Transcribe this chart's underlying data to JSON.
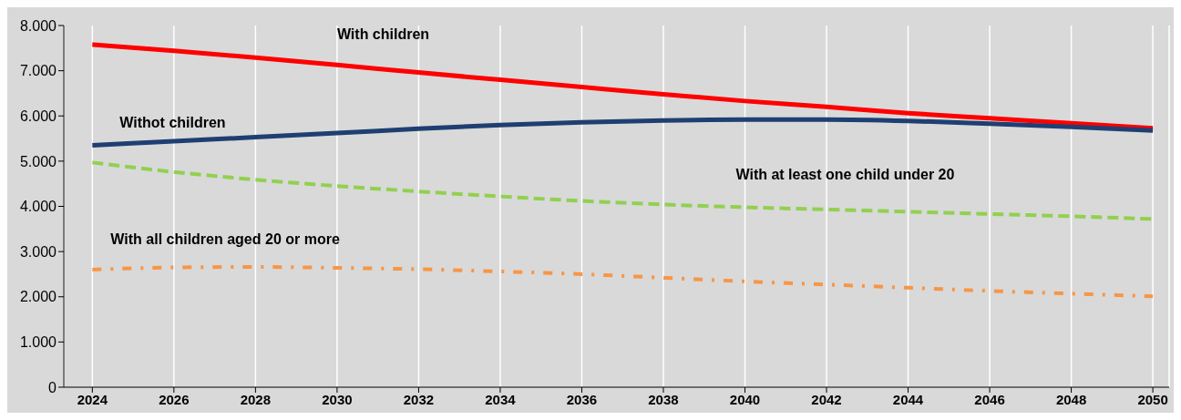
{
  "chart_data": {
    "type": "line",
    "x": [
      2024,
      2026,
      2028,
      2030,
      2032,
      2034,
      2036,
      2038,
      2040,
      2042,
      2044,
      2046,
      2048,
      2050
    ],
    "series": [
      {
        "name": "With children",
        "color": "#ff0000",
        "line_style": "solid",
        "values": [
          7580,
          7440,
          7290,
          7130,
          6960,
          6800,
          6640,
          6480,
          6330,
          6200,
          6060,
          5950,
          5840,
          5730
        ]
      },
      {
        "name": "Withot children",
        "color": "#1f3f73",
        "line_style": "solid",
        "values": [
          5350,
          5440,
          5530,
          5620,
          5720,
          5800,
          5860,
          5900,
          5920,
          5920,
          5890,
          5830,
          5760,
          5680
        ]
      },
      {
        "name": "With at least one child under 20",
        "color": "#92d050",
        "line_style": "dashed",
        "values": [
          4970,
          4760,
          4590,
          4450,
          4330,
          4220,
          4120,
          4040,
          3980,
          3930,
          3880,
          3830,
          3780,
          3720
        ]
      },
      {
        "name": "With all children aged 20 or more",
        "color": "#f79646",
        "line_style": "dashdot",
        "values": [
          2600,
          2650,
          2660,
          2640,
          2610,
          2560,
          2500,
          2420,
          2340,
          2270,
          2200,
          2130,
          2070,
          2010
        ]
      }
    ],
    "xlim": [
      2023.3,
      2050.4
    ],
    "xticks": [
      2024,
      2026,
      2028,
      2030,
      2032,
      2034,
      2036,
      2038,
      2040,
      2042,
      2044,
      2046,
      2048,
      2050
    ],
    "ylim": [
      0,
      8000
    ],
    "yticks": [
      {
        "value": 0,
        "label": "0"
      },
      {
        "value": 1000,
        "label": "1.000"
      },
      {
        "value": 2000,
        "label": "2.000"
      },
      {
        "value": 3000,
        "label": "3.000"
      },
      {
        "value": 4000,
        "label": "4.000"
      },
      {
        "value": 5000,
        "label": "5.000"
      },
      {
        "value": 6000,
        "label": "6.000"
      },
      {
        "value": 7000,
        "label": "7.000"
      },
      {
        "value": 8000,
        "label": "8.000"
      }
    ],
    "grid": "x",
    "marker": "none"
  }
}
